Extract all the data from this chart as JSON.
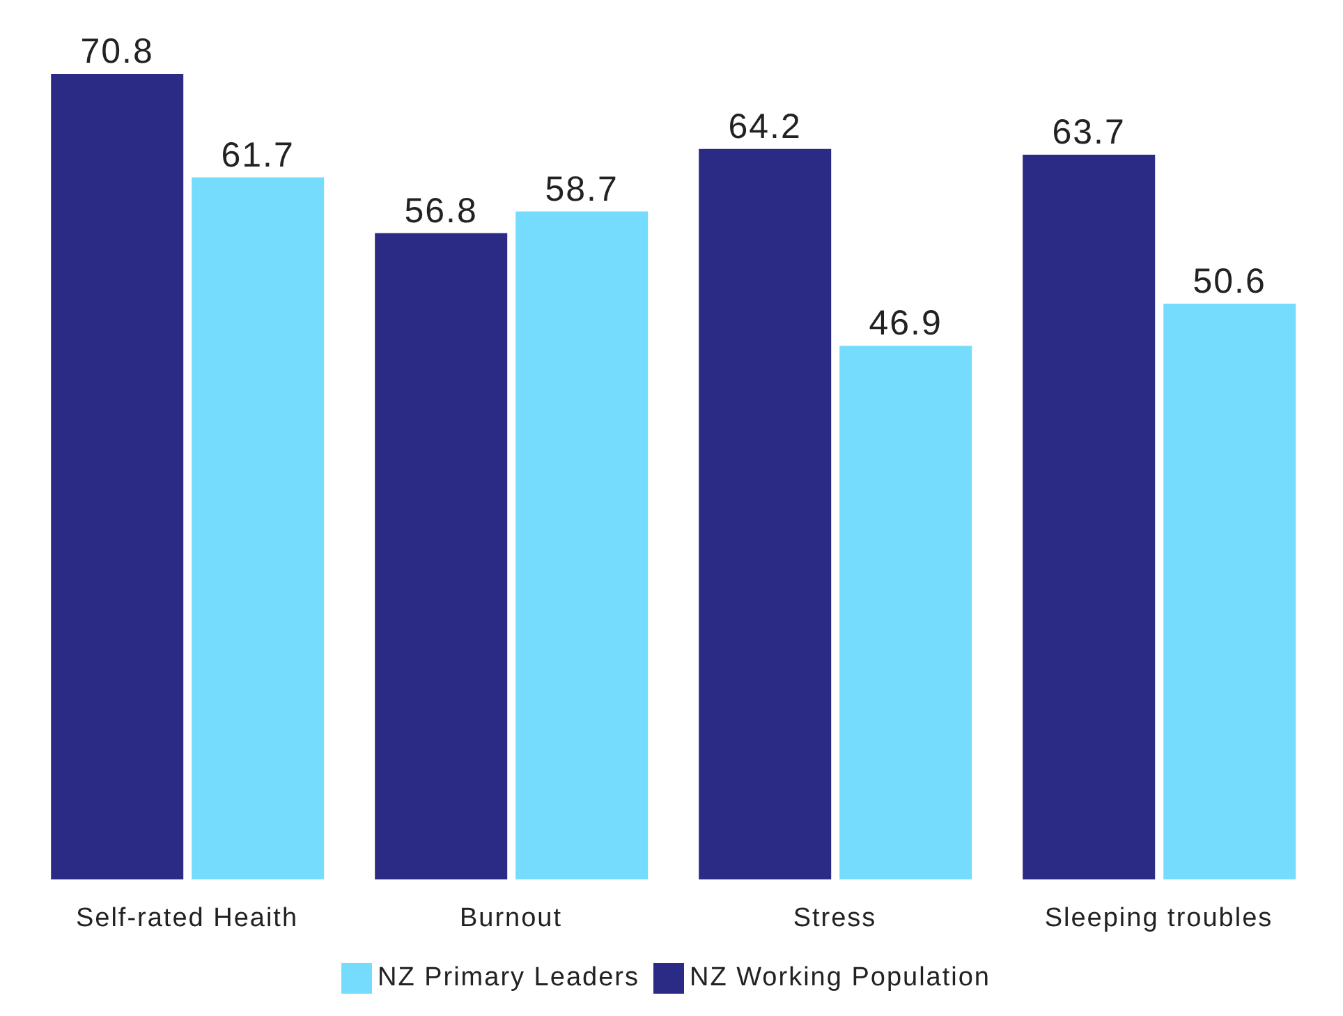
{
  "chart_data": {
    "type": "bar",
    "categories": [
      "Self-rated Heaith",
      "Burnout",
      "Stress",
      "Sleeping troubles"
    ],
    "series": [
      {
        "name": "NZ Working Population",
        "color": "#2b2a85",
        "values": [
          70.8,
          56.8,
          64.2,
          63.7
        ]
      },
      {
        "name": "NZ Primary Leaders",
        "color": "#75dcfe",
        "values": [
          61.7,
          58.7,
          46.9,
          50.6
        ]
      }
    ],
    "data_labels": true,
    "legend": "bottom",
    "grid": false
  }
}
